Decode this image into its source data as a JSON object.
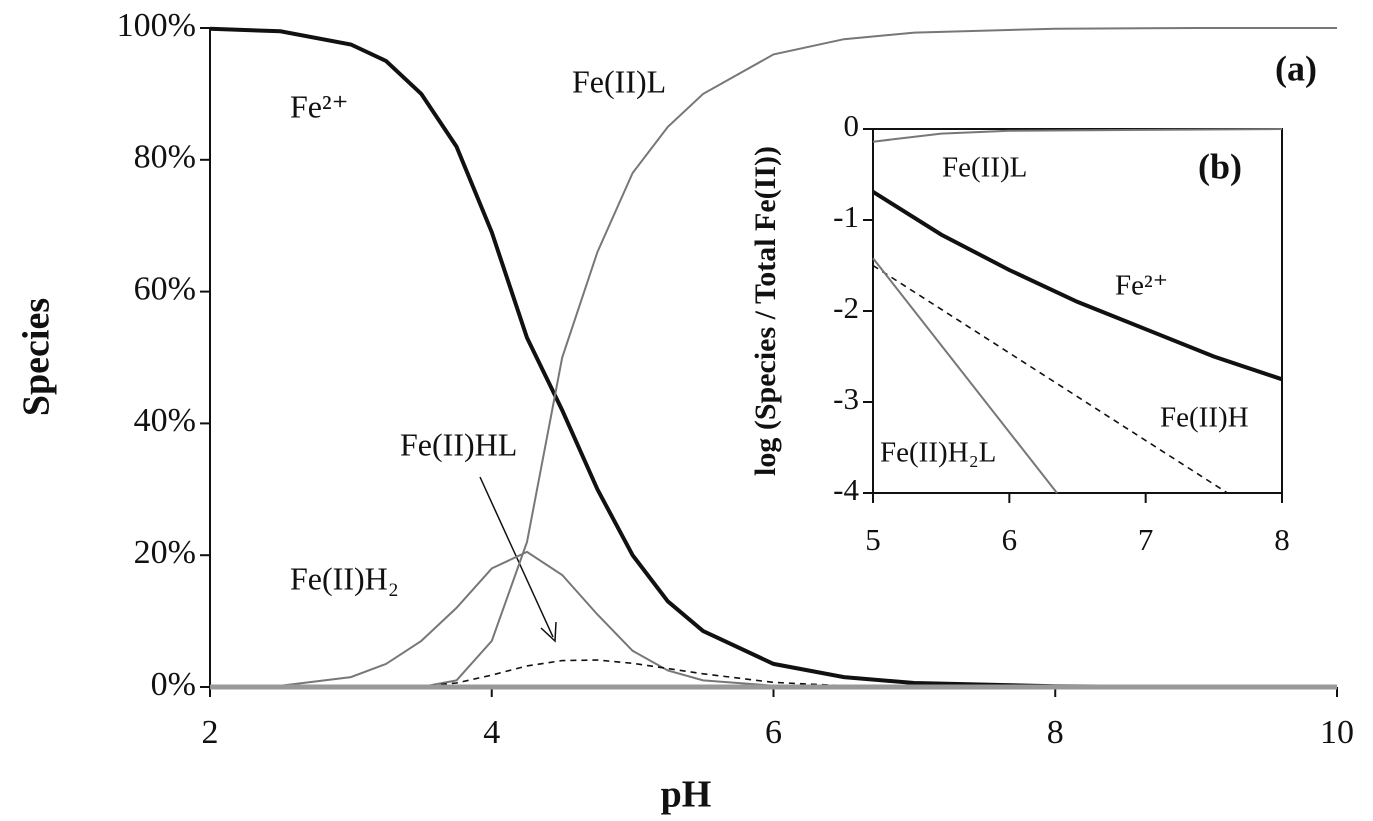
{
  "chart_data": [
    {
      "type": "line",
      "panel_label": "(a)",
      "xlabel": "pH",
      "ylabel": "Species",
      "x": [
        2,
        2.5,
        3,
        3.25,
        3.5,
        3.75,
        4,
        4.25,
        4.5,
        4.75,
        5,
        5.25,
        5.5,
        6,
        6.5,
        7,
        8,
        9,
        10
      ],
      "xlim": [
        2,
        10
      ],
      "xticks": [
        2,
        4,
        6,
        8,
        10
      ],
      "ylim": [
        0,
        100
      ],
      "yticks": [
        {
          "value": 0,
          "label": "0%"
        },
        {
          "value": 20,
          "label": "20%"
        },
        {
          "value": 40,
          "label": "40%"
        },
        {
          "value": 60,
          "label": "60%"
        },
        {
          "value": 80,
          "label": "80%"
        },
        {
          "value": 100,
          "label": "100%"
        }
      ],
      "series": [
        {
          "name": "Fe²⁺",
          "color": "#111111",
          "linestyle": "thick",
          "values": [
            99.9,
            99.5,
            97.5,
            95,
            90,
            82,
            69,
            53,
            42,
            30,
            20,
            13,
            8.5,
            3.5,
            1.5,
            0.6,
            0.1,
            0,
            0
          ]
        },
        {
          "name": "Fe(II)L",
          "color": "#777777",
          "linestyle": "solid",
          "values": [
            0,
            0,
            0,
            0,
            0,
            1,
            7,
            22,
            50,
            66,
            78,
            85,
            90,
            96,
            98.3,
            99.3,
            99.9,
            100,
            100
          ]
        },
        {
          "name": "Fe(II)H₂",
          "color": "#777777",
          "linestyle": "solid",
          "values": [
            0,
            0.2,
            1.5,
            3.5,
            7,
            12,
            18,
            20.5,
            17,
            11,
            5.5,
            2.5,
            1,
            0.2,
            0,
            0,
            0,
            0,
            0
          ]
        },
        {
          "name": "Fe(II)HL",
          "color": "#111111",
          "linestyle": "dashed",
          "values": [
            0,
            0,
            0,
            0,
            0.1,
            0.6,
            1.8,
            3.2,
            4,
            4.1,
            3.6,
            2.8,
            2,
            0.7,
            0.2,
            0.05,
            0,
            0,
            0
          ]
        }
      ]
    },
    {
      "type": "line",
      "panel_label": "(b)",
      "ylabel": "log (Species / Total Fe(II))",
      "xlim": [
        5,
        8
      ],
      "xticks": [
        5,
        6,
        7,
        8
      ],
      "ylim": [
        -4,
        0
      ],
      "yticks": [
        0,
        -1,
        -2,
        -3,
        -4
      ],
      "series": [
        {
          "name": "Fe(II)L",
          "color": "#777777",
          "linestyle": "solid",
          "x": [
            5,
            5.5,
            6,
            7,
            8
          ],
          "values": [
            -0.14,
            -0.05,
            -0.02,
            -0.01,
            0
          ]
        },
        {
          "name": "Fe²⁺",
          "color": "#111111",
          "linestyle": "thick",
          "x": [
            5,
            5.5,
            6,
            6.5,
            7,
            7.5,
            8
          ],
          "values": [
            -0.69,
            -1.16,
            -1.55,
            -1.9,
            -2.2,
            -2.5,
            -2.75
          ]
        },
        {
          "name": "Fe(II)H",
          "color": "#111111",
          "linestyle": "dashed",
          "x": [
            5,
            7.6
          ],
          "values": [
            -1.5,
            -4
          ]
        },
        {
          "name": "Fe(II)H₂L",
          "color": "#777777",
          "linestyle": "solid",
          "x": [
            5,
            6.35
          ],
          "values": [
            -1.42,
            -4
          ]
        }
      ]
    }
  ]
}
